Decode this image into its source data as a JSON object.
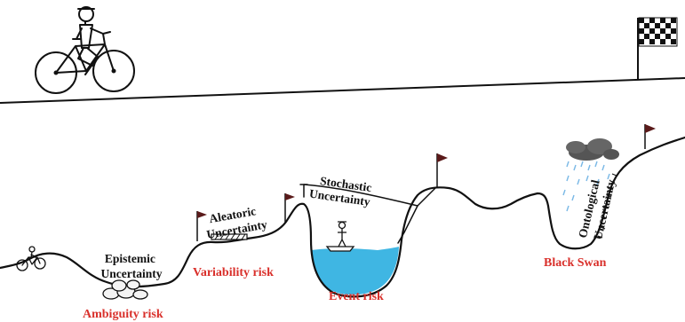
{
  "labels": {
    "epistemic": [
      "Epistemic",
      "Uncertainty"
    ],
    "aleatoric": [
      "Aleatoric",
      "Uncertainty"
    ],
    "stochastic": [
      "Stochastic",
      "Uncertainty"
    ],
    "ontological": [
      "Ontological",
      "Uncertainty"
    ]
  },
  "risks": {
    "ambiguity": "Ambiguity risk",
    "variability": "Variability risk",
    "event": "Event risk",
    "black_swan": "Black Swan"
  },
  "colors": {
    "line": "#111111",
    "risk_text": "#d9302b",
    "water": "#3fb6e3",
    "flag": "#5a1a1a",
    "cloud": "#555555",
    "rain": "#79b8e6"
  },
  "icons": [
    "bicycle-rider-icon",
    "checkered-flag-icon",
    "small-cyclist-icon",
    "rocks-icon",
    "boat-person-icon",
    "storm-cloud-icon",
    "red-flag-icon"
  ]
}
